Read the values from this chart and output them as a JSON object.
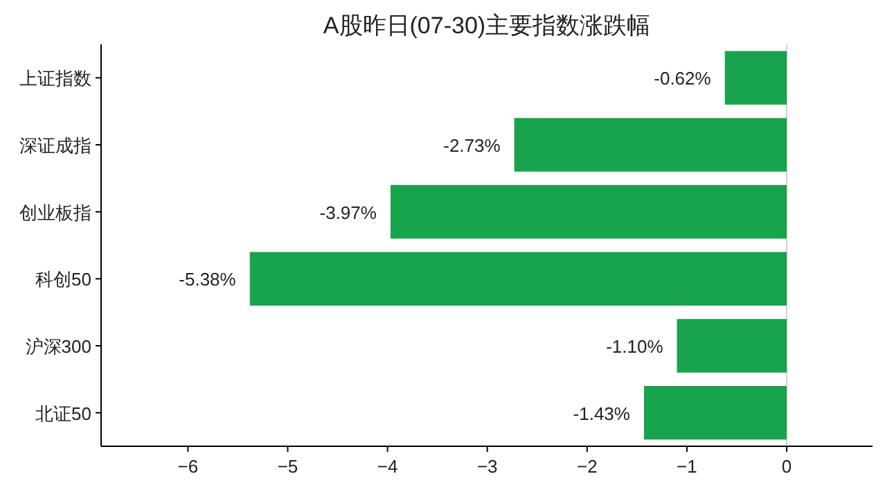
{
  "chart_data": {
    "type": "bar",
    "orientation": "horizontal",
    "title": "A股昨日(07-30)主要指数涨跌幅",
    "categories": [
      "上证指数",
      "深证成指",
      "创业板指",
      "科创50",
      "沪深300",
      "北证50"
    ],
    "values": [
      -0.62,
      -2.73,
      -3.97,
      -5.38,
      -1.1,
      -1.43
    ],
    "value_labels": [
      "-0.62%",
      "-2.73%",
      "-3.97%",
      "-5.38%",
      "-1.10%",
      "-1.43%"
    ],
    "color": "#18a44c",
    "xlim": [
      -6.87,
      0.86
    ],
    "xticks": [
      -6,
      -5,
      -4,
      -3,
      -2,
      -1,
      0
    ],
    "ref_lines": [
      {
        "axis": "x",
        "value": 0,
        "color": "#d0d0d0"
      }
    ],
    "grid": false
  }
}
